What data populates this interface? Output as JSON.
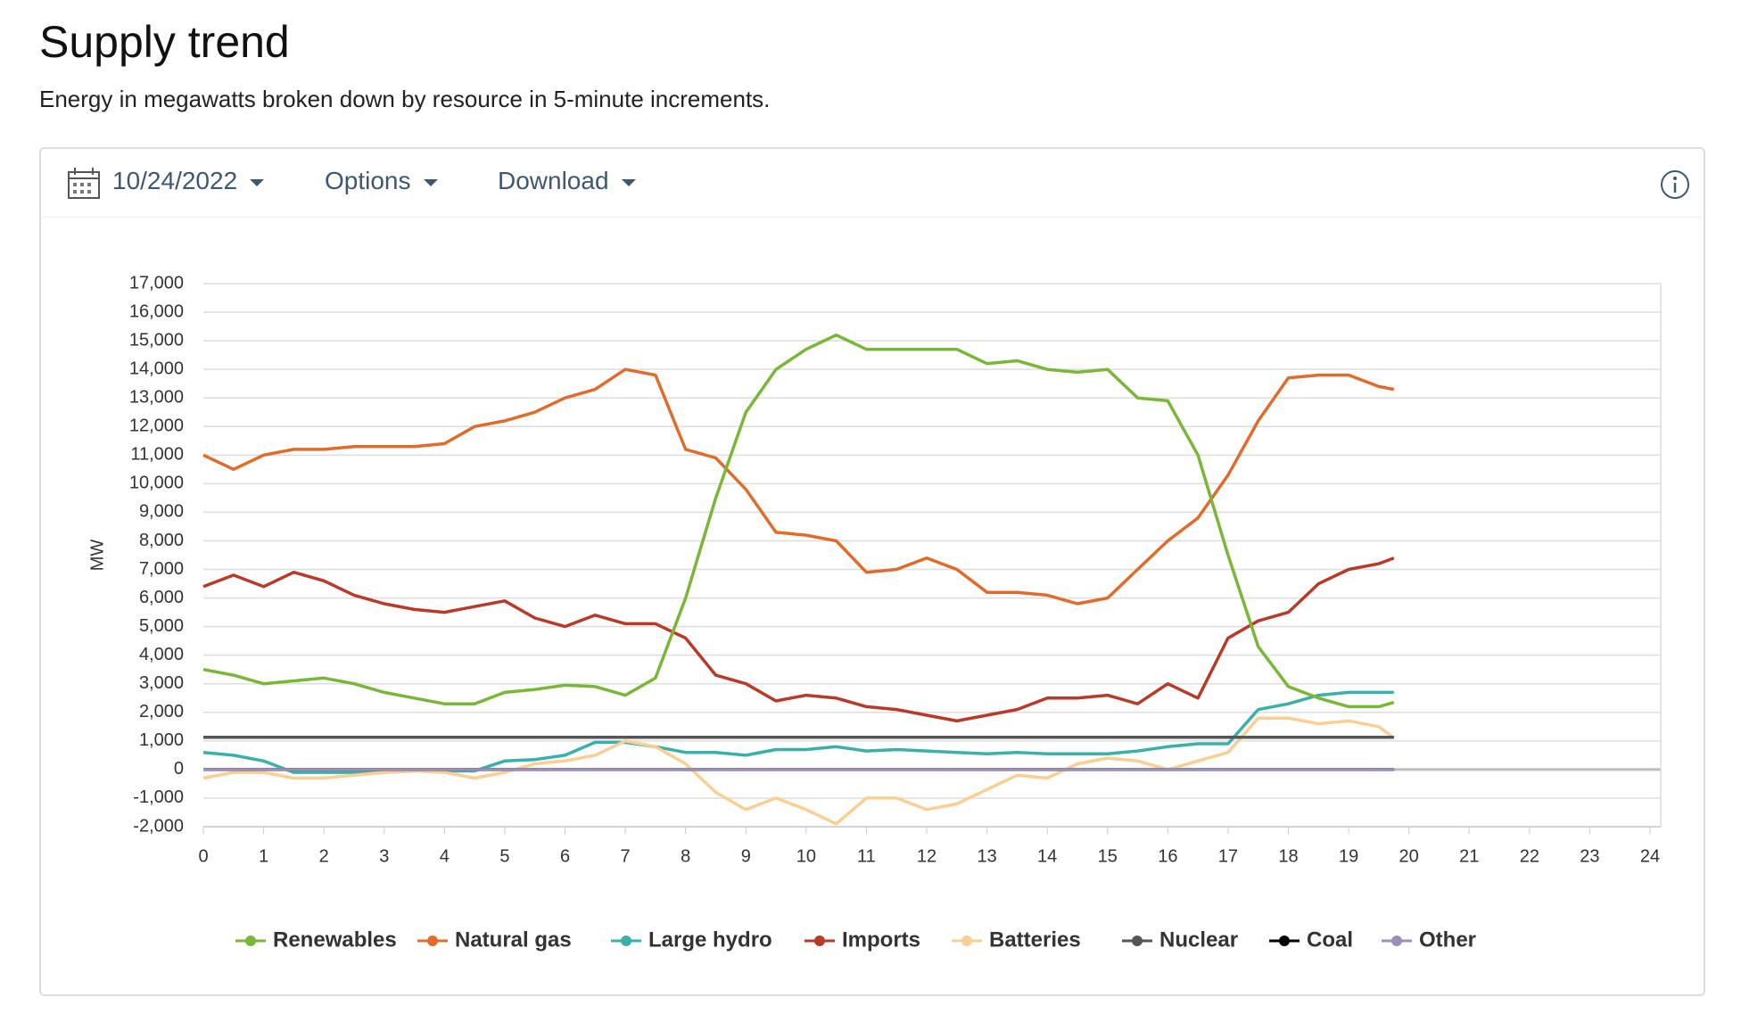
{
  "header": {
    "title": "Supply trend",
    "subtitle": "Energy in megawatts broken down by resource in 5-minute increments."
  },
  "toolbar": {
    "date": "10/24/2022",
    "options": "Options",
    "download": "Download"
  },
  "chart_data": {
    "type": "line",
    "y_label": "MW",
    "x": [
      0,
      0.5,
      1,
      1.5,
      2,
      2.5,
      3,
      3.5,
      4,
      4.5,
      5,
      5.5,
      6,
      6.5,
      7,
      7.5,
      8,
      8.5,
      9,
      9.5,
      10,
      10.5,
      11,
      11.5,
      12,
      12.5,
      13,
      13.5,
      14,
      14.5,
      15,
      15.5,
      16,
      16.5,
      17,
      17.5,
      18,
      18.5,
      19,
      19.5,
      19.75
    ],
    "xlim": [
      0,
      24
    ],
    "xticks": [
      0,
      1,
      2,
      3,
      4,
      5,
      6,
      7,
      8,
      9,
      10,
      11,
      12,
      13,
      14,
      15,
      16,
      17,
      18,
      19,
      20,
      21,
      22,
      23,
      24
    ],
    "ylim": [
      -2000,
      17000
    ],
    "yticks": [
      {
        "value": -2000,
        "label": "-2,000"
      },
      {
        "value": -1000,
        "label": "-1,000"
      },
      0,
      {
        "value": 1000,
        "label": "1,000"
      },
      {
        "value": 2000,
        "label": "2,000"
      },
      {
        "value": 3000,
        "label": "3,000"
      },
      {
        "value": 4000,
        "label": "4,000"
      },
      {
        "value": 5000,
        "label": "5,000"
      },
      {
        "value": 6000,
        "label": "6,000"
      },
      {
        "value": 7000,
        "label": "7,000"
      },
      {
        "value": 8000,
        "label": "8,000"
      },
      {
        "value": 9000,
        "label": "9,000"
      },
      {
        "value": 10000,
        "label": "10,000"
      },
      {
        "value": 11000,
        "label": "11,000"
      },
      {
        "value": 12000,
        "label": "12,000"
      },
      {
        "value": 13000,
        "label": "13,000"
      },
      {
        "value": 14000,
        "label": "14,000"
      },
      {
        "value": 15000,
        "label": "15,000"
      },
      {
        "value": 16000,
        "label": "16,000"
      },
      {
        "value": 17000,
        "label": "17,000"
      }
    ],
    "grid": true,
    "legend": "bottom",
    "series": [
      {
        "name": "Renewables",
        "color": "#7ab738",
        "values": [
          3500,
          3300,
          3000,
          3100,
          3200,
          3000,
          2700,
          2500,
          2300,
          2300,
          2700,
          2800,
          2950,
          2900,
          2600,
          3200,
          6000,
          9500,
          12500,
          14000,
          14700,
          15200,
          14700,
          14700,
          14700,
          14700,
          14200,
          14300,
          14000,
          13900,
          14000,
          13000,
          12900,
          11000,
          7500,
          4300,
          2900,
          2500,
          2200,
          2200,
          2350
        ]
      },
      {
        "name": "Natural gas",
        "color": "#e06c2c",
        "values": [
          11000,
          10500,
          11000,
          11200,
          11200,
          11300,
          11300,
          11300,
          11400,
          12000,
          12200,
          12500,
          13000,
          13300,
          14000,
          13800,
          11200,
          10900,
          9800,
          8300,
          8200,
          8000,
          6900,
          7000,
          7400,
          7000,
          6200,
          6200,
          6100,
          5800,
          6000,
          7000,
          8000,
          8800,
          10300,
          12200,
          13700,
          13800,
          13800,
          13400,
          13300
        ]
      },
      {
        "name": "Large hydro",
        "color": "#3ab0a8",
        "values": [
          600,
          500,
          300,
          -100,
          -100,
          -100,
          -100,
          -50,
          -50,
          -50,
          300,
          350,
          500,
          950,
          950,
          800,
          600,
          600,
          500,
          700,
          700,
          800,
          650,
          700,
          650,
          600,
          550,
          600,
          550,
          550,
          550,
          650,
          800,
          900,
          900,
          2100,
          2300,
          2600,
          2700,
          2700,
          2700
        ]
      },
      {
        "name": "Imports",
        "color": "#b83a2a",
        "values": [
          6400,
          6800,
          6400,
          6900,
          6600,
          6100,
          5800,
          5600,
          5500,
          5700,
          5900,
          5300,
          5000,
          5400,
          5100,
          5100,
          4600,
          3300,
          3000,
          2400,
          2600,
          2500,
          2200,
          2100,
          1900,
          1700,
          1900,
          2100,
          2500,
          2500,
          2600,
          2300,
          3000,
          2500,
          4600,
          5200,
          5500,
          6500,
          7000,
          7200,
          7400
        ]
      },
      {
        "name": "Batteries",
        "color": "#f9cf93",
        "values": [
          -300,
          -100,
          -100,
          -300,
          -300,
          -200,
          -100,
          -50,
          -100,
          -300,
          -100,
          200,
          300,
          500,
          1000,
          800,
          200,
          -800,
          -1400,
          -1000,
          -1400,
          -1900,
          -1000,
          -1000,
          -1400,
          -1200,
          -700,
          -200,
          -300,
          200,
          400,
          300,
          0,
          300,
          600,
          1800,
          1800,
          1600,
          1700,
          1500,
          1100
        ]
      },
      {
        "name": "Nuclear",
        "color": "#555555",
        "values": [
          1130,
          1130,
          1130,
          1130,
          1130,
          1130,
          1130,
          1130,
          1130,
          1130,
          1130,
          1130,
          1130,
          1130,
          1130,
          1130,
          1130,
          1130,
          1130,
          1130,
          1130,
          1130,
          1130,
          1130,
          1130,
          1130,
          1130,
          1130,
          1130,
          1130,
          1130,
          1130,
          1130,
          1130,
          1130,
          1130,
          1130,
          1130,
          1130,
          1130,
          1130
        ]
      },
      {
        "name": "Coal",
        "color": "#000000",
        "values": [
          0,
          0,
          0,
          0,
          0,
          0,
          0,
          0,
          0,
          0,
          0,
          0,
          0,
          0,
          0,
          0,
          0,
          0,
          0,
          0,
          0,
          0,
          0,
          0,
          0,
          0,
          0,
          0,
          0,
          0,
          0,
          0,
          0,
          0,
          0,
          0,
          0,
          0,
          0,
          0,
          0
        ]
      },
      {
        "name": "Other",
        "color": "#9a8fb8",
        "values": [
          0,
          0,
          0,
          0,
          0,
          0,
          0,
          0,
          0,
          0,
          0,
          0,
          0,
          0,
          0,
          0,
          0,
          0,
          0,
          0,
          0,
          0,
          0,
          0,
          0,
          0,
          0,
          0,
          0,
          0,
          0,
          0,
          0,
          0,
          0,
          0,
          0,
          0,
          0,
          0,
          0
        ]
      }
    ]
  }
}
